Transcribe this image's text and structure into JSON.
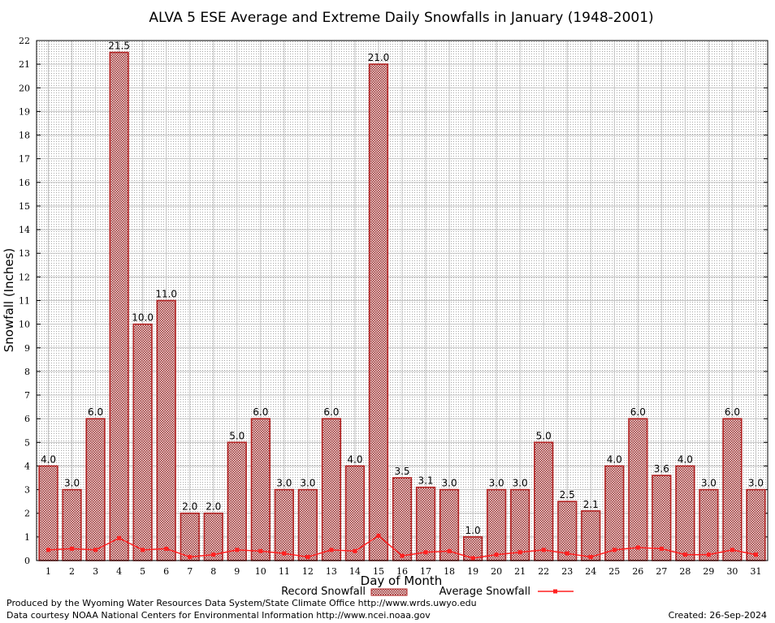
{
  "chart_data": {
    "type": "bar",
    "title": "ALVA 5 ESE Average and Extreme Daily Snowfalls in January (1948-2001)",
    "xlabel": "Day of Month",
    "ylabel": "Snowfall (Inches)",
    "ylim": [
      0,
      22
    ],
    "yticks": [
      0,
      1,
      2,
      3,
      4,
      5,
      6,
      7,
      8,
      9,
      10,
      11,
      12,
      13,
      14,
      15,
      16,
      17,
      18,
      19,
      20,
      21,
      22
    ],
    "grid": true,
    "categories": [
      1,
      2,
      3,
      4,
      5,
      6,
      7,
      8,
      9,
      10,
      11,
      12,
      13,
      14,
      15,
      16,
      17,
      18,
      19,
      20,
      21,
      22,
      23,
      24,
      25,
      26,
      27,
      28,
      29,
      30,
      31
    ],
    "series": [
      {
        "name": "Record Snowfall",
        "type": "bar",
        "color": "#b22222",
        "values": [
          4.0,
          3.0,
          6.0,
          21.5,
          10.0,
          11.0,
          2.0,
          2.0,
          5.0,
          6.0,
          3.0,
          3.0,
          6.0,
          4.0,
          21.0,
          3.5,
          3.1,
          3.0,
          1.0,
          3.0,
          3.0,
          5.0,
          2.5,
          2.1,
          4.0,
          6.0,
          3.6,
          4.0,
          3.0,
          6.0,
          3.0
        ],
        "labels": [
          "4.0",
          "3.0",
          "6.0",
          "21.5",
          "10.0",
          "11.0",
          "2.0",
          "2.0",
          "5.0",
          "6.0",
          "3.0",
          "3.0",
          "6.0",
          "4.0",
          "21.0",
          "3.5",
          "3.1",
          "3.0",
          "1.0",
          "3.0",
          "3.0",
          "5.0",
          "2.5",
          "2.1",
          "4.0",
          "6.0",
          "3.6",
          "4.0",
          "3.0",
          "6.0",
          "3.0"
        ]
      },
      {
        "name": "Average Snowfall",
        "type": "line",
        "color": "#ff2020",
        "values": [
          0.45,
          0.5,
          0.45,
          0.95,
          0.45,
          0.5,
          0.15,
          0.25,
          0.45,
          0.4,
          0.3,
          0.15,
          0.45,
          0.4,
          1.05,
          0.2,
          0.35,
          0.4,
          0.1,
          0.25,
          0.35,
          0.45,
          0.3,
          0.15,
          0.45,
          0.55,
          0.5,
          0.25,
          0.25,
          0.45,
          0.25
        ]
      }
    ],
    "legend_position": "bottom"
  },
  "footer": {
    "produced_by": "Produced by the Wyoming Water Resources Data System/State Climate Office http://www.wrds.uwyo.edu",
    "courtesy": "Data courtesy NOAA National Centers for Environmental Information http://www.ncei.noaa.gov",
    "created": "Created:  26-Sep-2024"
  }
}
